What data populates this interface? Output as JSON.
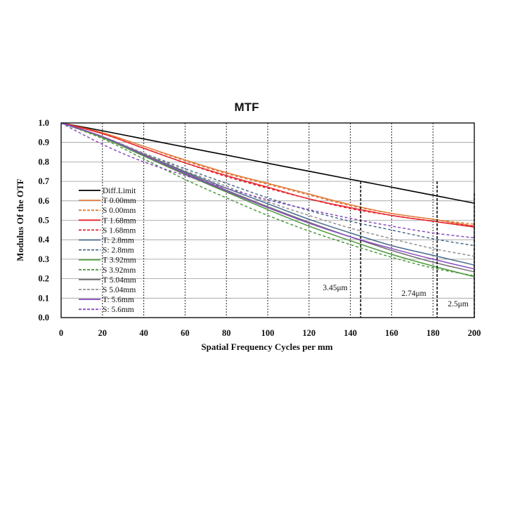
{
  "chart_data": {
    "type": "line",
    "title": "MTF",
    "xlabel": "Spatial Frequency Cycles per mm",
    "ylabel": "Modulus Of  the OTF",
    "xlim": [
      0,
      200
    ],
    "ylim": [
      0,
      1
    ],
    "xticks": [
      "0",
      "20",
      "40",
      "60",
      "80",
      "100",
      "120",
      "140",
      "160",
      "180",
      "200"
    ],
    "yticks": [
      "0.0",
      "0.1",
      "0.2",
      "0.3",
      "0.4",
      "0.5",
      "0.6",
      "0.7",
      "0.8",
      "0.9",
      "1.0"
    ],
    "grid": {
      "horizontal": "solid",
      "vertical": "dotted"
    },
    "legend": "left",
    "x": [
      0,
      20,
      40,
      60,
      80,
      100,
      120,
      140,
      160,
      180,
      200
    ],
    "series": [
      {
        "name": "Diff.Limit",
        "color": "#000000",
        "dash": "solid",
        "values": [
          1.0,
          0.96,
          0.918,
          0.876,
          0.835,
          0.793,
          0.752,
          0.711,
          0.67,
          0.629,
          0.588
        ]
      },
      {
        "name": "T 0.00mm",
        "color": "#e07b39",
        "dash": "solid",
        "values": [
          1.0,
          0.95,
          0.88,
          0.81,
          0.745,
          0.69,
          0.635,
          0.58,
          0.535,
          0.505,
          0.47
        ]
      },
      {
        "name": "S 0.00mm",
        "color": "#e07b39",
        "dash": "dashed",
        "values": [
          1.0,
          0.95,
          0.88,
          0.805,
          0.74,
          0.685,
          0.63,
          0.575,
          0.535,
          0.505,
          0.48
        ]
      },
      {
        "name": "T 1.68mm",
        "color": "#e8202a",
        "dash": "solid",
        "values": [
          1.0,
          0.945,
          0.87,
          0.795,
          0.73,
          0.67,
          0.61,
          0.565,
          0.525,
          0.495,
          0.465
        ]
      },
      {
        "name": "S 1.68mm",
        "color": "#e8202a",
        "dash": "dashed",
        "values": [
          1.0,
          0.945,
          0.87,
          0.795,
          0.725,
          0.665,
          0.61,
          0.56,
          0.525,
          0.495,
          0.47
        ]
      },
      {
        "name": "T: 2.8mm",
        "color": "#4a6a8a",
        "dash": "solid",
        "values": [
          1.0,
          0.93,
          0.84,
          0.75,
          0.665,
          0.585,
          0.505,
          0.435,
          0.37,
          0.32,
          0.27
        ]
      },
      {
        "name": "S: 2.8mm",
        "color": "#4a6a8a",
        "dash": "dashed",
        "values": [
          1.0,
          0.93,
          0.845,
          0.765,
          0.69,
          0.615,
          0.55,
          0.495,
          0.45,
          0.405,
          0.37
        ]
      },
      {
        "name": "T 3.92mm",
        "color": "#4c9a3c",
        "dash": "solid",
        "values": [
          1.0,
          0.925,
          0.83,
          0.735,
          0.645,
          0.555,
          0.47,
          0.395,
          0.325,
          0.265,
          0.21
        ]
      },
      {
        "name": "S 3.92mm",
        "color": "#4c9a3c",
        "dash": "dashed",
        "values": [
          1.0,
          0.92,
          0.815,
          0.71,
          0.615,
          0.525,
          0.445,
          0.375,
          0.31,
          0.255,
          0.215
        ]
      },
      {
        "name": "T 5.04mm",
        "color": "#707070",
        "dash": "solid",
        "values": [
          1.0,
          0.93,
          0.84,
          0.745,
          0.655,
          0.57,
          0.49,
          0.415,
          0.345,
          0.285,
          0.235
        ]
      },
      {
        "name": "S 5.04mm",
        "color": "#909090",
        "dash": "dashed",
        "values": [
          1.0,
          0.93,
          0.845,
          0.755,
          0.675,
          0.595,
          0.525,
          0.46,
          0.405,
          0.355,
          0.315
        ]
      },
      {
        "name": "T: 5.6mm",
        "color": "#8a4bbf",
        "dash": "solid",
        "values": [
          1.0,
          0.93,
          0.835,
          0.74,
          0.65,
          0.565,
          0.485,
          0.415,
          0.355,
          0.3,
          0.25
        ]
      },
      {
        "name": "S: 5.6mm",
        "color": "#8a4bbf",
        "dash": "dashed",
        "values": [
          1.0,
          0.89,
          0.8,
          0.73,
          0.665,
          0.605,
          0.555,
          0.51,
          0.47,
          0.435,
          0.41
        ]
      }
    ],
    "reference_lines": [
      {
        "x": 145,
        "label": "3.45μm"
      },
      {
        "x": 182,
        "label": "2.74μm"
      },
      {
        "x": 200,
        "label": "2.5μm"
      }
    ]
  }
}
